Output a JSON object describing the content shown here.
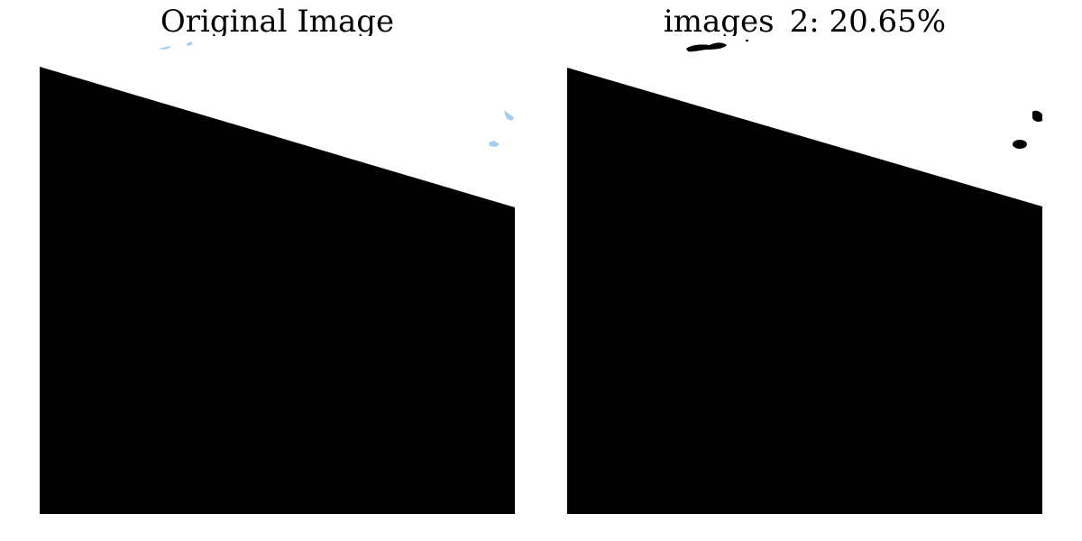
{
  "panels": [
    {
      "title": "Original Image"
    },
    {
      "title": "images_2: 20.65%"
    }
  ],
  "colors": {
    "background": "#ffffff",
    "mask_fill": "#000000",
    "light_artifact": "#a8ccec"
  }
}
